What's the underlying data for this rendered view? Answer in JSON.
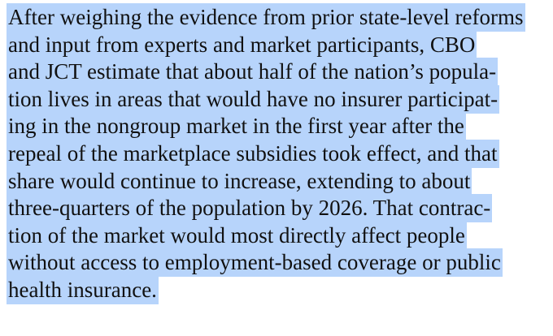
{
  "selection_color": "#b7d4fb",
  "text_color": "#111111",
  "paragraph": {
    "lines": [
      "After weighing the evidence from prior state-level reforms",
      "and input from experts and market participants, CBO",
      "and JCT estimate that about half of the nation’s popula-",
      "tion lives in areas that would have no insurer participat-",
      "ing in the nongroup market in the first year after the",
      "repeal of the marketplace subsidies took effect, and that",
      "share would continue to increase, extending to about",
      "three-quarters of the population by 2026. That contrac-",
      "tion of the market would most directly affect people",
      "without access to employment-based coverage or public",
      "health insurance."
    ]
  }
}
